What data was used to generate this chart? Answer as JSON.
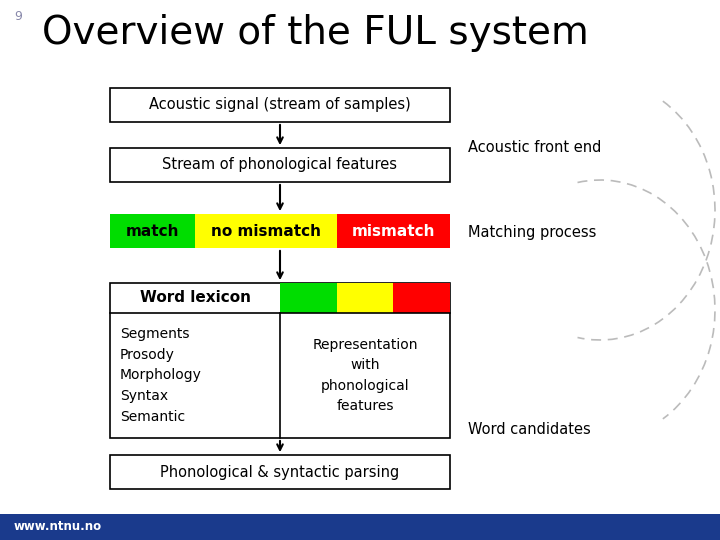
{
  "title": "Overview of the FUL system",
  "slide_number": "9",
  "background_color": "#ffffff",
  "footer_color": "#1a3a8c",
  "footer_text": "www.ntnu.no",
  "title_font_size": 28,
  "box1_text": "Acoustic signal (stream of samples)",
  "box2_text": "Stream of phonological features",
  "match_text": "match",
  "no_mismatch_text": "no mismatch",
  "mismatch_text": "mismatch",
  "match_color": "#00dd00",
  "no_mismatch_color": "#ffff00",
  "mismatch_color": "#ff0000",
  "word_lexicon_text": "Word lexicon",
  "left_col_text": "Segments\nProsody\nMorphology\nSyntax\nSemantic",
  "right_col_text": "Representation\nwith\nphonological\nfeatures",
  "bottom_box_text": "Phonological & syntactic parsing",
  "label_acoustic": "Acoustic front end",
  "label_matching": "Matching process",
  "label_word_candidates": "Word candidates",
  "dashed_color": "#bbbbbb",
  "slide_num_color": "#8888aa"
}
